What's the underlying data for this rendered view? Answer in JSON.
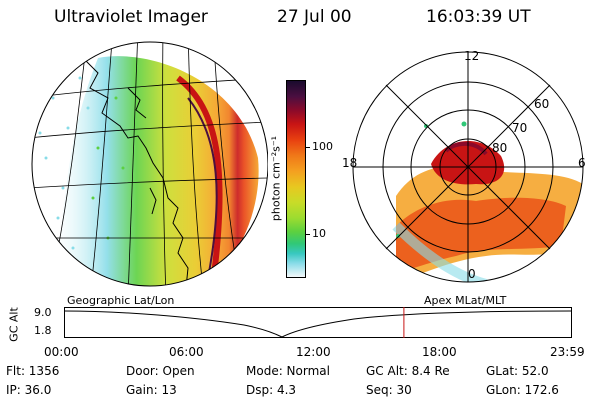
{
  "header": {
    "instrument": "Ultraviolet Imager",
    "date": "27 Jul 00",
    "time": "16:03:39 UT"
  },
  "colorbar": {
    "label": "photon cm⁻²s⁻¹",
    "ticks": [
      "100",
      "10"
    ],
    "colors": [
      "#1a0b2e",
      "#4b0f40",
      "#8b0a2a",
      "#c81414",
      "#e84010",
      "#f07818",
      "#f4a020",
      "#e8c820",
      "#c8dc28",
      "#9cdc30",
      "#5cd040",
      "#30c878",
      "#38c8c0",
      "#88dce8",
      "#c8ecf4",
      "#f4f8fa"
    ]
  },
  "left_panel": {
    "caption": "Geographic Lat/Lon"
  },
  "right_panel": {
    "caption": "Apex MLat/MLT",
    "mlt_labels": [
      "12",
      "18",
      "6",
      "0"
    ],
    "lat_labels": [
      "60",
      "70",
      "80"
    ]
  },
  "timeline": {
    "y_label": "GC Alt",
    "y_ticks": [
      "9.0",
      "1.8"
    ],
    "x_ticks": [
      "00:00",
      "06:00",
      "12:00",
      "18:00",
      "23:59"
    ],
    "current_time_fraction": 0.669
  },
  "status": {
    "flt": "Flt: 1356",
    "ip": "IP: 36.0",
    "door": "Door: Open",
    "gain": "Gain: 13",
    "mode": "Mode: Normal",
    "dsp": "Dsp:     4.3",
    "gc_alt": "GC Alt: 8.4 Re",
    "seq": "Seq: 30",
    "glat": "GLat:  52.0",
    "glon": "GLon: 172.6"
  }
}
